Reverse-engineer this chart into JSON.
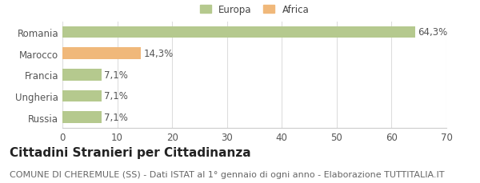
{
  "categories": [
    "Romania",
    "Marocco",
    "Francia",
    "Ungheria",
    "Russia"
  ],
  "values": [
    64.3,
    14.3,
    7.1,
    7.1,
    7.1
  ],
  "labels": [
    "64,3%",
    "14,3%",
    "7,1%",
    "7,1%",
    "7,1%"
  ],
  "colors": [
    "#b5c98e",
    "#f0b87a",
    "#b5c98e",
    "#b5c98e",
    "#b5c98e"
  ],
  "legend_items": [
    {
      "label": "Europa",
      "color": "#b5c98e"
    },
    {
      "label": "Africa",
      "color": "#f0b87a"
    }
  ],
  "xlim": [
    0,
    70
  ],
  "xticks": [
    0,
    10,
    20,
    30,
    40,
    50,
    60,
    70
  ],
  "title": "Cittadini Stranieri per Cittadinanza",
  "subtitle": "COMUNE DI CHEREMULE (SS) - Dati ISTAT al 1° gennaio di ogni anno - Elaborazione TUTTITALIA.IT",
  "background_color": "#ffffff",
  "bar_height": 0.55,
  "label_fontsize": 8.5,
  "tick_fontsize": 8.5,
  "title_fontsize": 11,
  "subtitle_fontsize": 8
}
